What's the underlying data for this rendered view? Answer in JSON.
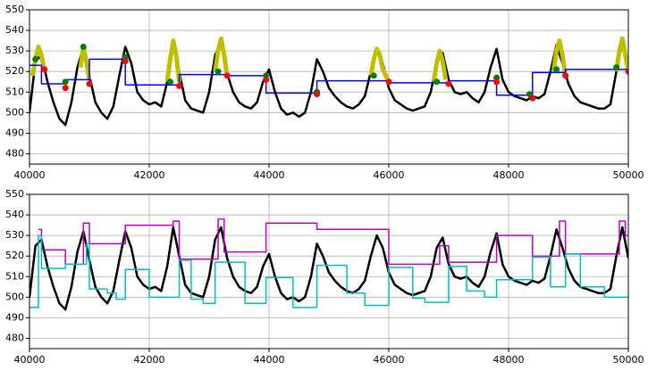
{
  "chart_data": [
    {
      "type": "line",
      "xlim": [
        40000,
        50000
      ],
      "ylim": [
        475,
        550
      ],
      "xticks": [
        40000,
        42000,
        44000,
        46000,
        48000,
        50000
      ],
      "yticks": [
        480,
        490,
        500,
        510,
        520,
        530,
        540,
        550
      ],
      "grid": true,
      "series": [
        {
          "color": "#000000",
          "style": "line",
          "x": [
            40000,
            40100,
            40200,
            40300,
            40400,
            40500,
            40600,
            40700,
            40800,
            40900,
            41000,
            41100,
            41200,
            41300,
            41400,
            41500,
            41600,
            41700,
            41800,
            41900,
            42000,
            42100,
            42200,
            42300,
            42400,
            42500,
            42600,
            42700,
            42800,
            42900,
            43000,
            43100,
            43200,
            43300,
            43400,
            43500,
            43600,
            43700,
            43800,
            43900,
            44000,
            44100,
            44200,
            44300,
            44400,
            44500,
            44600,
            44700,
            44800,
            44900,
            45000,
            45100,
            45200,
            45300,
            45400,
            45500,
            45600,
            45700,
            45800,
            45900,
            46000,
            46100,
            46200,
            46300,
            46400,
            46500,
            46600,
            46700,
            46800,
            46900,
            47000,
            47100,
            47200,
            47300,
            47400,
            47500,
            47600,
            47700,
            47800,
            47900,
            48000,
            48100,
            48200,
            48300,
            48400,
            48500,
            48600,
            48700,
            48800,
            48900,
            49000,
            49100,
            49200,
            49300,
            49400,
            49500,
            49600,
            49700,
            49800,
            49900,
            50000
          ],
          "values": [
            500,
            525,
            528,
            515,
            505,
            497,
            494,
            505,
            522,
            532,
            518,
            505,
            500,
            497,
            503,
            518,
            532,
            524,
            510,
            506,
            504,
            505,
            503,
            515,
            534,
            520,
            506,
            502,
            501,
            500,
            510,
            528,
            534,
            519,
            510,
            505,
            503,
            502,
            505,
            515,
            521,
            510,
            502,
            499,
            500,
            498,
            500,
            510,
            526,
            520,
            512,
            508,
            505,
            503,
            502,
            504,
            508,
            520,
            530,
            524,
            512,
            506,
            504,
            502,
            501,
            502,
            503,
            510,
            524,
            529,
            516,
            510,
            509,
            510,
            507,
            505,
            510,
            522,
            531,
            516,
            510,
            508,
            507,
            506,
            508,
            507,
            509,
            520,
            533,
            524,
            514,
            508,
            505,
            504,
            503,
            502,
            502,
            504,
            520,
            534,
            519
          ]
        },
        {
          "color": "#bfbf00",
          "style": "line",
          "x": [
            40050,
            40100,
            40150,
            40200,
            40250,
            40300,
            40850,
            40900,
            40950,
            41000,
            41050,
            42300,
            42350,
            42400,
            42450,
            42500,
            42550,
            43100,
            43150,
            43200,
            43250,
            43300,
            43350,
            45700,
            45750,
            45800,
            45850,
            45900,
            46000,
            46050,
            46750,
            46800,
            46850,
            46900,
            46950,
            47000,
            48750,
            48800,
            48850,
            48900,
            48950,
            49000,
            49800,
            49850,
            49900,
            49950,
            50000
          ],
          "values": [
            518,
            526,
            532,
            528,
            520,
            null,
            522,
            532,
            525,
            516,
            null,
            515,
            526,
            535,
            528,
            515,
            null,
            520,
            530,
            536,
            528,
            518,
            null,
            518,
            526,
            531,
            528,
            521,
            515,
            null,
            515,
            524,
            530,
            525,
            516,
            null,
            520,
            530,
            535,
            528,
            518,
            null,
            520,
            530,
            536,
            528,
            520
          ]
        },
        {
          "color": "#0000ff",
          "style": "steps-post",
          "x": [
            40000,
            40200,
            40600,
            41000,
            41600,
            42500,
            43300,
            43950,
            44800,
            46000,
            47000,
            47800,
            48400,
            48950,
            50000
          ],
          "values": [
            523,
            514,
            516,
            526,
            513.5,
            518.5,
            518,
            509.5,
            515.5,
            514.5,
            515.5,
            508.5,
            519.5,
            521,
            521
          ]
        },
        {
          "color": "#008000",
          "style": "scatter",
          "x": [
            40100,
            40600,
            40900,
            41600,
            42350,
            43150,
            43950,
            44800,
            45750,
            46800,
            47800,
            48350,
            48800,
            49800
          ],
          "values": [
            526,
            515,
            532,
            527,
            515,
            520,
            518,
            510,
            518,
            515,
            517,
            509,
            521,
            522
          ]
        },
        {
          "color": "#ff0000",
          "style": "scatter",
          "x": [
            40250,
            40600,
            41000,
            41600,
            42500,
            43300,
            43950,
            44800,
            46000,
            47000,
            47800,
            48400,
            48950,
            50000
          ],
          "values": [
            521,
            512,
            514,
            525,
            513,
            518,
            516,
            509,
            515,
            514,
            515,
            507,
            518,
            520
          ]
        }
      ]
    },
    {
      "type": "line",
      "xlim": [
        40000,
        50000
      ],
      "ylim": [
        475,
        550
      ],
      "xticks": [
        40000,
        42000,
        44000,
        46000,
        48000,
        50000
      ],
      "yticks": [
        480,
        490,
        500,
        510,
        520,
        530,
        540,
        550
      ],
      "grid": true,
      "series": [
        {
          "color": "#000000",
          "style": "line",
          "x": [
            40000,
            40100,
            40200,
            40300,
            40400,
            40500,
            40600,
            40700,
            40800,
            40900,
            41000,
            41100,
            41200,
            41300,
            41400,
            41500,
            41600,
            41700,
            41800,
            41900,
            42000,
            42100,
            42200,
            42300,
            42400,
            42500,
            42600,
            42700,
            42800,
            42900,
            43000,
            43100,
            43200,
            43300,
            43400,
            43500,
            43600,
            43700,
            43800,
            43900,
            44000,
            44100,
            44200,
            44300,
            44400,
            44500,
            44600,
            44700,
            44800,
            44900,
            45000,
            45100,
            45200,
            45300,
            45400,
            45500,
            45600,
            45700,
            45800,
            45900,
            46000,
            46100,
            46200,
            46300,
            46400,
            46500,
            46600,
            46700,
            46800,
            46900,
            47000,
            47100,
            47200,
            47300,
            47400,
            47500,
            47600,
            47700,
            47800,
            47900,
            48000,
            48100,
            48200,
            48300,
            48400,
            48500,
            48600,
            48700,
            48800,
            48900,
            49000,
            49100,
            49200,
            49300,
            49400,
            49500,
            49600,
            49700,
            49800,
            49900,
            50000
          ],
          "values": [
            500,
            525,
            528,
            515,
            505,
            497,
            494,
            505,
            522,
            532,
            518,
            505,
            500,
            497,
            503,
            518,
            532,
            524,
            510,
            506,
            504,
            505,
            503,
            515,
            534,
            520,
            506,
            502,
            501,
            500,
            510,
            528,
            534,
            519,
            510,
            505,
            503,
            502,
            505,
            515,
            521,
            510,
            502,
            499,
            500,
            498,
            500,
            510,
            526,
            520,
            512,
            508,
            505,
            503,
            502,
            504,
            508,
            520,
            530,
            524,
            512,
            506,
            504,
            502,
            501,
            502,
            503,
            510,
            524,
            529,
            516,
            510,
            509,
            510,
            507,
            505,
            510,
            522,
            531,
            516,
            510,
            508,
            507,
            506,
            508,
            507,
            509,
            520,
            533,
            524,
            514,
            508,
            505,
            504,
            503,
            502,
            502,
            504,
            520,
            534,
            519
          ]
        },
        {
          "color": "#bf00bf",
          "style": "steps-post",
          "x": [
            40150,
            40200,
            40600,
            40900,
            41000,
            41600,
            42400,
            42500,
            43150,
            43250,
            43950,
            44800,
            46000,
            46850,
            47000,
            47800,
            48400,
            48850,
            48950,
            49850,
            49950,
            50000
          ],
          "values": [
            533,
            523,
            516,
            536,
            526,
            535,
            537,
            518.5,
            538,
            522,
            536,
            533,
            516,
            525,
            517,
            530,
            520,
            537,
            521,
            537,
            530,
            530
          ]
        },
        {
          "color": "#00bfbf",
          "style": "steps-post",
          "x": [
            40000,
            40150,
            40200,
            40600,
            40950,
            41000,
            41300,
            41450,
            41600,
            42000,
            42500,
            42700,
            42900,
            43100,
            43600,
            43950,
            44400,
            44800,
            45300,
            45600,
            46000,
            46400,
            46600,
            47000,
            47300,
            47600,
            47800,
            48400,
            48700,
            48950,
            49200,
            49600,
            50000
          ],
          "values": [
            495,
            530,
            514,
            516,
            526,
            504,
            502,
            499,
            513.5,
            500,
            518,
            499,
            497,
            517,
            497,
            509.5,
            495,
            515.5,
            502,
            496,
            514.5,
            499.5,
            497.5,
            515,
            503,
            500,
            508.5,
            519.5,
            505,
            521,
            505,
            500,
            500
          ]
        }
      ]
    }
  ]
}
